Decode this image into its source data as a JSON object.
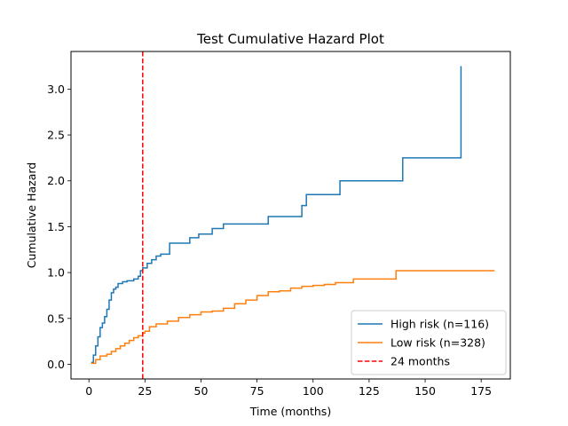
{
  "chart_data": {
    "type": "line",
    "step": true,
    "title": "Test Cumulative Hazard Plot",
    "xlabel": "Time (months)",
    "ylabel": "Cumulative Hazard",
    "xlim": [
      -8,
      188
    ],
    "ylim": [
      -0.16,
      3.41
    ],
    "xticks": [
      0,
      25,
      50,
      75,
      100,
      125,
      150,
      175
    ],
    "yticks": [
      0.0,
      0.5,
      1.0,
      1.5,
      2.0,
      2.5,
      3.0
    ],
    "xtick_labels": [
      "0",
      "25",
      "50",
      "75",
      "100",
      "125",
      "150",
      "175"
    ],
    "ytick_labels": [
      "0.0",
      "0.5",
      "1.0",
      "1.5",
      "2.0",
      "2.5",
      "3.0"
    ],
    "grid": false,
    "legend_position": "lower-right",
    "series": [
      {
        "name": "High risk (n=116)",
        "color": "#1f77b4",
        "x": [
          1,
          2,
          3,
          4,
          5,
          6,
          7,
          8,
          9,
          10,
          11,
          12,
          13,
          15,
          17,
          20,
          22,
          23,
          24,
          26,
          28,
          30,
          32,
          36,
          42,
          45,
          49,
          55,
          60,
          65,
          75,
          80,
          95,
          97,
          100,
          112,
          120,
          130,
          140,
          150,
          160,
          166
        ],
        "y": [
          0.02,
          0.1,
          0.2,
          0.3,
          0.4,
          0.45,
          0.52,
          0.6,
          0.7,
          0.78,
          0.82,
          0.84,
          0.88,
          0.9,
          0.91,
          0.93,
          0.96,
          1.02,
          1.05,
          1.1,
          1.14,
          1.18,
          1.2,
          1.32,
          1.32,
          1.38,
          1.42,
          1.48,
          1.53,
          1.53,
          1.53,
          1.61,
          1.73,
          1.85,
          1.85,
          2.0,
          2.0,
          2.0,
          2.25,
          2.25,
          2.25,
          3.25
        ]
      },
      {
        "name": "Low risk (n=328)",
        "color": "#ff7f0e",
        "x": [
          1,
          3,
          5,
          8,
          10,
          12,
          14,
          16,
          18,
          20,
          22,
          24,
          25,
          27,
          30,
          35,
          40,
          45,
          50,
          55,
          60,
          65,
          70,
          75,
          80,
          85,
          90,
          95,
          100,
          105,
          110,
          118,
          125,
          130,
          137,
          145,
          155,
          165,
          181
        ],
        "y": [
          0.01,
          0.05,
          0.09,
          0.11,
          0.14,
          0.17,
          0.2,
          0.23,
          0.26,
          0.29,
          0.31,
          0.34,
          0.36,
          0.41,
          0.44,
          0.47,
          0.51,
          0.54,
          0.57,
          0.58,
          0.61,
          0.66,
          0.7,
          0.75,
          0.79,
          0.8,
          0.83,
          0.85,
          0.86,
          0.87,
          0.89,
          0.93,
          0.93,
          0.93,
          1.02,
          1.02,
          1.02,
          1.02,
          1.02
        ]
      }
    ],
    "reference_lines": [
      {
        "name": "24 months",
        "orientation": "vertical",
        "x": 24,
        "color": "#ff0000",
        "style": "dashed"
      }
    ]
  }
}
